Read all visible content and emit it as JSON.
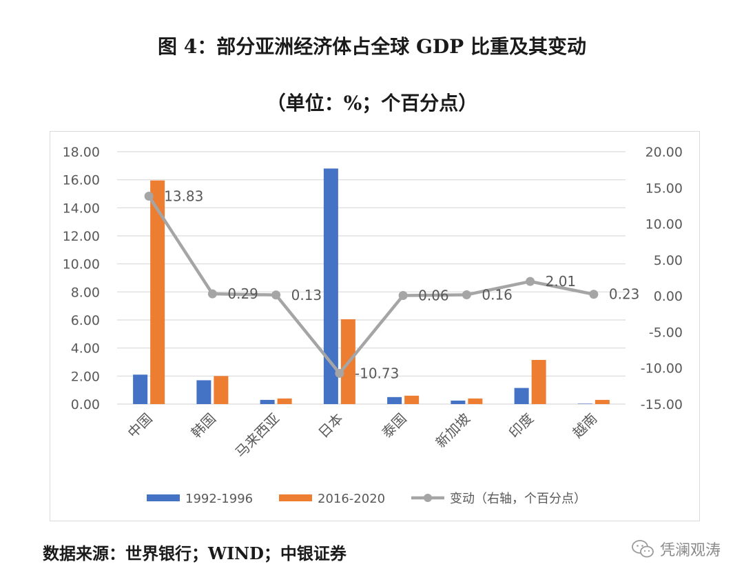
{
  "title": "图 4：部分亚洲经济体占全球 GDP 比重及其变动",
  "subtitle": "（单位：%；个百分点）",
  "source": "数据来源：世界银行；WIND；中银证券",
  "watermark": "凭澜观涛",
  "colors": {
    "series1": "#4472c4",
    "series2": "#ed7d31",
    "line": "#a5a5a5",
    "grid": "#d9d9d9",
    "text": "#595959"
  },
  "chart_data": {
    "type": "bar+line",
    "categories": [
      "中国",
      "韩国",
      "马来西亚",
      "日本",
      "泰国",
      "新加坡",
      "印度",
      "越南"
    ],
    "series": [
      {
        "name": "1992-1996",
        "type": "bar",
        "axis": "left",
        "values": [
          2.1,
          1.7,
          0.3,
          16.8,
          0.5,
          0.25,
          1.15,
          0.03
        ]
      },
      {
        "name": "2016-2020",
        "type": "bar",
        "axis": "left",
        "values": [
          15.95,
          2.0,
          0.4,
          6.05,
          0.6,
          0.4,
          3.15,
          0.3
        ]
      },
      {
        "name": "变动（右轴，个百分点）",
        "type": "line",
        "axis": "right",
        "values": [
          13.83,
          0.29,
          0.13,
          -10.73,
          0.06,
          0.16,
          2.01,
          0.23
        ]
      }
    ],
    "line_labels": [
      "13.83",
      "0.29",
      "0.13",
      "-10.73",
      "0.06",
      "0.16",
      "2.01",
      "0.23"
    ],
    "left_axis": {
      "ylim": [
        0,
        18
      ],
      "ticks": [
        "0.00",
        "2.00",
        "4.00",
        "6.00",
        "8.00",
        "10.00",
        "12.00",
        "14.00",
        "16.00",
        "18.00"
      ]
    },
    "right_axis": {
      "ylim": [
        -15,
        20
      ],
      "ticks": [
        "-15.00",
        "-10.00",
        "-5.00",
        "0.00",
        "5.00",
        "10.00",
        "15.00",
        "20.00"
      ]
    },
    "legend_position": "bottom",
    "grid": true
  }
}
